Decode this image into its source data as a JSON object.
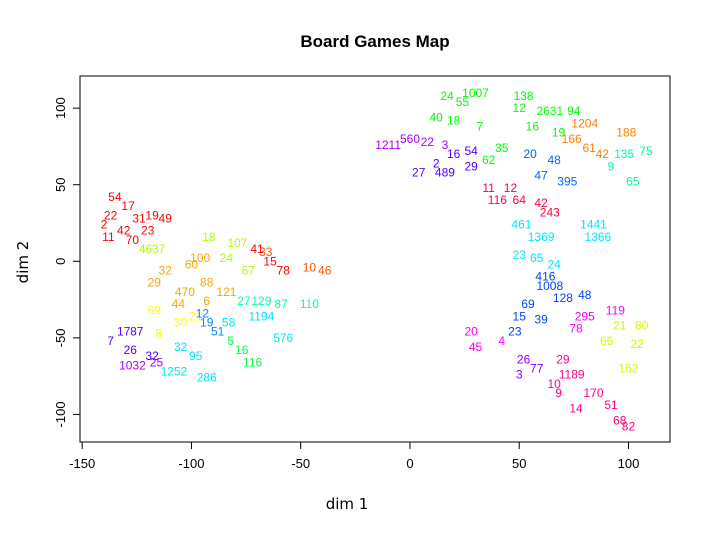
{
  "chart_data": {
    "type": "scatter",
    "title": "Board Games Map",
    "xlabel": "dim 1",
    "ylabel": "dim 2",
    "xlim": [
      -151,
      119
    ],
    "ylim": [
      -118,
      121
    ],
    "xticks": [
      -150,
      -100,
      -50,
      0,
      50,
      100
    ],
    "yticks": [
      -100,
      -50,
      0,
      50,
      100
    ],
    "point_style": "text-labels",
    "clusters": [
      {
        "color": "#FF0000",
        "points": [
          {
            "x": -135,
            "y": 42,
            "label": "54"
          },
          {
            "x": -129,
            "y": 36,
            "label": "17"
          },
          {
            "x": -137,
            "y": 30,
            "label": "22"
          },
          {
            "x": -124,
            "y": 28,
            "label": "31"
          },
          {
            "x": -118,
            "y": 30,
            "label": "19"
          },
          {
            "x": -140,
            "y": 24,
            "label": "2"
          },
          {
            "x": -131,
            "y": 20,
            "label": "42"
          },
          {
            "x": -120,
            "y": 20,
            "label": "23"
          },
          {
            "x": -138,
            "y": 16,
            "label": "11"
          },
          {
            "x": -127,
            "y": 14,
            "label": "70"
          },
          {
            "x": -112,
            "y": 28,
            "label": "49"
          },
          {
            "x": -70,
            "y": 8,
            "label": "41"
          },
          {
            "x": -64,
            "y": 0,
            "label": "15"
          },
          {
            "x": -58,
            "y": -6,
            "label": "78"
          }
        ]
      },
      {
        "color": "#FF5500",
        "points": [
          {
            "x": -46,
            "y": -4,
            "label": "10"
          },
          {
            "x": -39,
            "y": -6,
            "label": "46"
          },
          {
            "x": -66,
            "y": 6,
            "label": "33"
          }
        ]
      },
      {
        "color": "#FFA500",
        "points": [
          {
            "x": -112,
            "y": -6,
            "label": "32"
          },
          {
            "x": -100,
            "y": -2,
            "label": "60"
          },
          {
            "x": -117,
            "y": -14,
            "label": "29"
          },
          {
            "x": -103,
            "y": -20,
            "label": "470"
          },
          {
            "x": -93,
            "y": -14,
            "label": "88"
          },
          {
            "x": -106,
            "y": -28,
            "label": "44"
          },
          {
            "x": -93,
            "y": -26,
            "label": "6"
          },
          {
            "x": -84,
            "y": -20,
            "label": "121"
          },
          {
            "x": -96,
            "y": 2,
            "label": "100"
          }
        ]
      },
      {
        "color": "#FFFF00",
        "points": [
          {
            "x": -117,
            "y": -32,
            "label": "69"
          },
          {
            "x": -105,
            "y": -40,
            "label": "30"
          },
          {
            "x": -115,
            "y": -47,
            "label": "8"
          },
          {
            "x": -98,
            "y": -36,
            "label": "21"
          }
        ]
      },
      {
        "color": "#AAFF00",
        "points": [
          {
            "x": -121,
            "y": 8,
            "label": "46"
          },
          {
            "x": -115,
            "y": 8,
            "label": "37"
          },
          {
            "x": -79,
            "y": 12,
            "label": "107"
          },
          {
            "x": -84,
            "y": 2,
            "label": "24"
          },
          {
            "x": -74,
            "y": -6,
            "label": "67"
          },
          {
            "x": -92,
            "y": 16,
            "label": "18"
          }
        ]
      },
      {
        "color": "#00FF44",
        "points": [
          {
            "x": -77,
            "y": -58,
            "label": "16"
          },
          {
            "x": -72,
            "y": -66,
            "label": "116"
          },
          {
            "x": -82,
            "y": -52,
            "label": "5"
          }
        ]
      },
      {
        "color": "#00FFAA",
        "points": [
          {
            "x": -76,
            "y": -26,
            "label": "27"
          },
          {
            "x": -68,
            "y": -26,
            "label": "129"
          },
          {
            "x": -59,
            "y": -28,
            "label": "87"
          },
          {
            "x": -46,
            "y": -28,
            "label": "110"
          }
        ]
      },
      {
        "color": "#00E5FF",
        "points": [
          {
            "x": -68,
            "y": -36,
            "label": "1194"
          },
          {
            "x": -58,
            "y": -50,
            "label": "576"
          },
          {
            "x": -105,
            "y": -56,
            "label": "32"
          },
          {
            "x": -98,
            "y": -62,
            "label": "95"
          },
          {
            "x": -108,
            "y": -72,
            "label": "1252"
          },
          {
            "x": -93,
            "y": -76,
            "label": "286"
          },
          {
            "x": -83,
            "y": -40,
            "label": "58"
          }
        ]
      },
      {
        "color": "#0088FF",
        "points": [
          {
            "x": -93,
            "y": -40,
            "label": "19"
          },
          {
            "x": -88,
            "y": -46,
            "label": "51"
          },
          {
            "x": -95,
            "y": -34,
            "label": "12"
          }
        ]
      },
      {
        "color": "#5500FF",
        "points": [
          {
            "x": -131,
            "y": -46,
            "label": "17"
          },
          {
            "x": -125,
            "y": -46,
            "label": "87"
          },
          {
            "x": -137,
            "y": -52,
            "label": "7"
          },
          {
            "x": -128,
            "y": -58,
            "label": "26"
          },
          {
            "x": -118,
            "y": -62,
            "label": "32"
          }
        ]
      },
      {
        "color": "#AA00FF",
        "points": [
          {
            "x": -127,
            "y": -68,
            "label": "1032"
          },
          {
            "x": -116,
            "y": -66,
            "label": "25"
          }
        ]
      },
      {
        "color": "#00FF00",
        "points": [
          {
            "x": 17,
            "y": 108,
            "label": "24"
          },
          {
            "x": 30,
            "y": 110,
            "label": "1007"
          },
          {
            "x": 24,
            "y": 104,
            "label": "55"
          },
          {
            "x": 12,
            "y": 94,
            "label": "40"
          },
          {
            "x": 20,
            "y": 92,
            "label": "18"
          },
          {
            "x": 32,
            "y": 88,
            "label": "7"
          },
          {
            "x": 52,
            "y": 108,
            "label": "138"
          },
          {
            "x": 50,
            "y": 100,
            "label": "12"
          },
          {
            "x": 64,
            "y": 98,
            "label": "2631"
          },
          {
            "x": 75,
            "y": 98,
            "label": "94"
          },
          {
            "x": 56,
            "y": 88,
            "label": "16"
          },
          {
            "x": 68,
            "y": 84,
            "label": "19"
          },
          {
            "x": 42,
            "y": 74,
            "label": "35"
          },
          {
            "x": 36,
            "y": 66,
            "label": "62"
          }
        ]
      },
      {
        "color": "#FF7F00",
        "points": [
          {
            "x": 80,
            "y": 90,
            "label": "1204"
          },
          {
            "x": 99,
            "y": 84,
            "label": "188"
          },
          {
            "x": 74,
            "y": 80,
            "label": "166"
          },
          {
            "x": 82,
            "y": 74,
            "label": "61"
          },
          {
            "x": 88,
            "y": 70,
            "label": "42"
          }
        ]
      },
      {
        "color": "#00FF99",
        "points": [
          {
            "x": 98,
            "y": 70,
            "label": "135"
          },
          {
            "x": 108,
            "y": 72,
            "label": "75"
          },
          {
            "x": 102,
            "y": 52,
            "label": "65"
          },
          {
            "x": 92,
            "y": 62,
            "label": "9"
          }
        ]
      },
      {
        "color": "#0066FF",
        "points": [
          {
            "x": 55,
            "y": 70,
            "label": "20"
          },
          {
            "x": 66,
            "y": 66,
            "label": "48"
          },
          {
            "x": 60,
            "y": 56,
            "label": "47"
          },
          {
            "x": 72,
            "y": 52,
            "label": "395"
          }
        ]
      },
      {
        "color": "#AA00FF",
        "points": [
          {
            "x": 0,
            "y": 80,
            "label": "560"
          },
          {
            "x": -10,
            "y": 76,
            "label": "1211"
          },
          {
            "x": 8,
            "y": 78,
            "label": "22"
          },
          {
            "x": 16,
            "y": 76,
            "label": "3"
          }
        ]
      },
      {
        "color": "#5500FF",
        "points": [
          {
            "x": 20,
            "y": 70,
            "label": "16"
          },
          {
            "x": 28,
            "y": 72,
            "label": "54"
          },
          {
            "x": 12,
            "y": 64,
            "label": "2"
          },
          {
            "x": 4,
            "y": 58,
            "label": "27"
          },
          {
            "x": 16,
            "y": 58,
            "label": "489"
          },
          {
            "x": 28,
            "y": 62,
            "label": "29"
          }
        ]
      },
      {
        "color": "#FF0044",
        "points": [
          {
            "x": 36,
            "y": 48,
            "label": "11"
          },
          {
            "x": 46,
            "y": 48,
            "label": "12"
          },
          {
            "x": 50,
            "y": 40,
            "label": "64"
          },
          {
            "x": 40,
            "y": 40,
            "label": "116"
          },
          {
            "x": 60,
            "y": 38,
            "label": "42"
          },
          {
            "x": 64,
            "y": 32,
            "label": "243"
          }
        ]
      },
      {
        "color": "#00E5FF",
        "points": [
          {
            "x": 51,
            "y": 24,
            "label": "461"
          },
          {
            "x": 84,
            "y": 24,
            "label": "1441"
          },
          {
            "x": 86,
            "y": 16,
            "label": "1366"
          },
          {
            "x": 60,
            "y": 16,
            "label": "1369"
          },
          {
            "x": 50,
            "y": 4,
            "label": "23"
          },
          {
            "x": 58,
            "y": 2,
            "label": "65"
          },
          {
            "x": 66,
            "y": -2,
            "label": "24"
          }
        ]
      },
      {
        "color": "#0044FF",
        "points": [
          {
            "x": 62,
            "y": -10,
            "label": "416"
          },
          {
            "x": 64,
            "y": -16,
            "label": "1008"
          },
          {
            "x": 54,
            "y": -28,
            "label": "69"
          },
          {
            "x": 70,
            "y": -24,
            "label": "128"
          },
          {
            "x": 80,
            "y": -22,
            "label": "48"
          },
          {
            "x": 50,
            "y": -36,
            "label": "15"
          },
          {
            "x": 60,
            "y": -38,
            "label": "39"
          },
          {
            "x": 48,
            "y": -46,
            "label": "23"
          }
        ]
      },
      {
        "color": "#FF00FF",
        "points": [
          {
            "x": 94,
            "y": -32,
            "label": "119"
          },
          {
            "x": 80,
            "y": -36,
            "label": "295"
          },
          {
            "x": 76,
            "y": -44,
            "label": "78"
          },
          {
            "x": 42,
            "y": -52,
            "label": "4"
          },
          {
            "x": 28,
            "y": -46,
            "label": "20"
          },
          {
            "x": 30,
            "y": -56,
            "label": "45"
          }
        ]
      },
      {
        "color": "#CCFF00",
        "points": [
          {
            "x": 96,
            "y": -42,
            "label": "21"
          },
          {
            "x": 106,
            "y": -42,
            "label": "80"
          },
          {
            "x": 90,
            "y": -52,
            "label": "66"
          },
          {
            "x": 104,
            "y": -54,
            "label": "22"
          },
          {
            "x": 100,
            "y": -70,
            "label": "162"
          }
        ]
      },
      {
        "color": "#8800FF",
        "points": [
          {
            "x": 50,
            "y": -74,
            "label": "3"
          },
          {
            "x": 58,
            "y": -70,
            "label": "77"
          },
          {
            "x": 52,
            "y": -64,
            "label": "26"
          }
        ]
      },
      {
        "color": "#FF0088",
        "points": [
          {
            "x": 70,
            "y": -64,
            "label": "29"
          },
          {
            "x": 74,
            "y": -74,
            "label": "1189"
          },
          {
            "x": 66,
            "y": -80,
            "label": "10"
          },
          {
            "x": 68,
            "y": -86,
            "label": "9"
          },
          {
            "x": 84,
            "y": -86,
            "label": "170"
          },
          {
            "x": 92,
            "y": -94,
            "label": "51"
          },
          {
            "x": 76,
            "y": -96,
            "label": "14"
          },
          {
            "x": 96,
            "y": -104,
            "label": "68"
          },
          {
            "x": 100,
            "y": -108,
            "label": "82"
          }
        ]
      }
    ]
  }
}
